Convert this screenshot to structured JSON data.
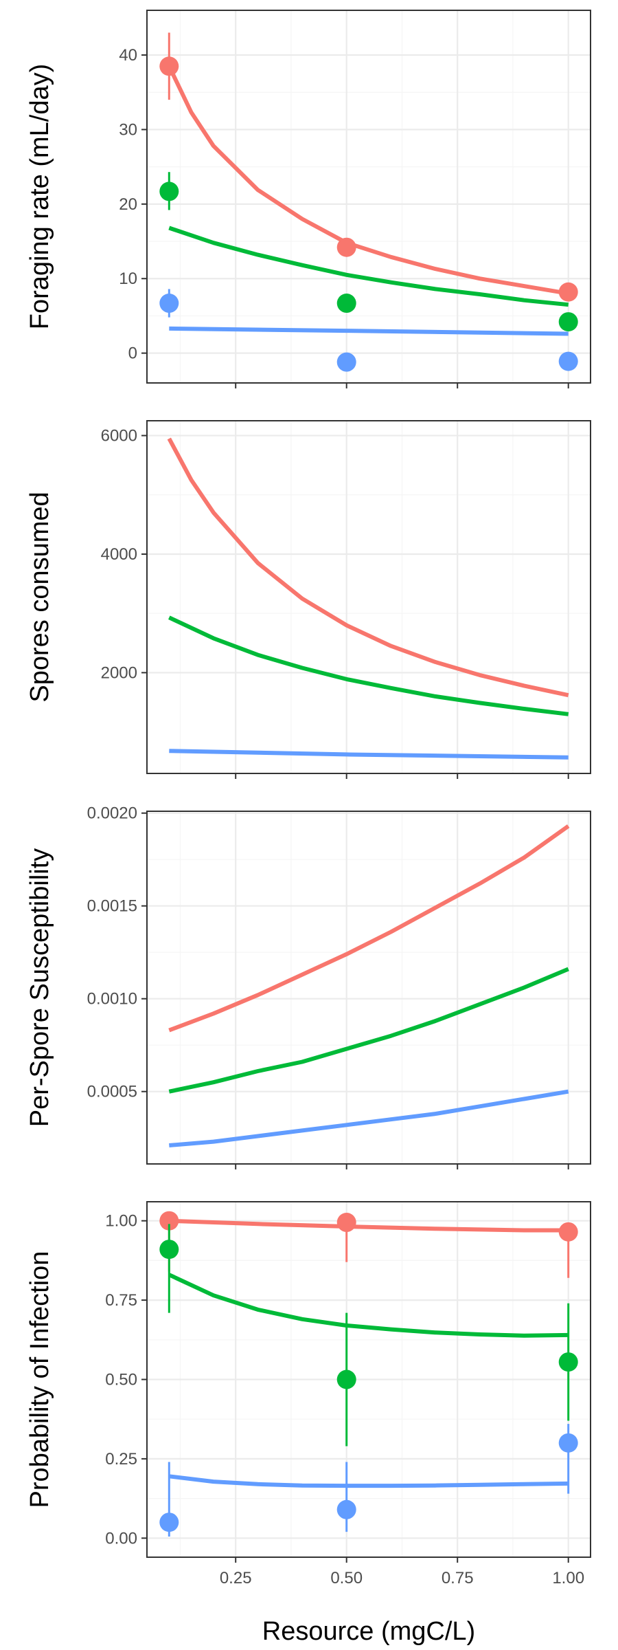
{
  "figure": {
    "xlabel": "Resource (mgC/L)",
    "x_tick_labels": [
      "0.25",
      "0.50",
      "0.75",
      "1.00"
    ]
  },
  "colors": {
    "series_red": "#F8766D",
    "series_green": "#00BA38",
    "series_blue": "#619CFF",
    "grid_major": "#EBEBEB",
    "grid_minor": "#F5F5F5",
    "panel_border": "#333333"
  },
  "chart_data": [
    {
      "type": "line",
      "title": "",
      "xlabel": "",
      "ylabel": "Foraging rate (mL/day)",
      "xlim": [
        0.05,
        1.05
      ],
      "ylim": [
        -4,
        46
      ],
      "yticks": [
        0,
        10,
        20,
        30,
        40
      ],
      "ytick_labels": [
        "0",
        "10",
        "20",
        "30",
        "40"
      ],
      "grid": true,
      "series": [
        {
          "color": "#F8766D",
          "line": [
            [
              0.1,
              38.5
            ],
            [
              0.15,
              32.3
            ],
            [
              0.2,
              27.8
            ],
            [
              0.3,
              21.9
            ],
            [
              0.4,
              18.0
            ],
            [
              0.5,
              14.8
            ],
            [
              0.6,
              12.9
            ],
            [
              0.7,
              11.3
            ],
            [
              0.8,
              10.0
            ],
            [
              0.9,
              9.0
            ],
            [
              1.0,
              8.0
            ]
          ],
          "points": [
            {
              "x": 0.1,
              "y": 38.5,
              "lo": 34.0,
              "hi": 43.0
            },
            {
              "x": 0.5,
              "y": 14.2,
              "lo": 13.4,
              "hi": 15.0
            },
            {
              "x": 1.0,
              "y": 8.2,
              "lo": 7.5,
              "hi": 9.0
            }
          ]
        },
        {
          "color": "#00BA38",
          "line": [
            [
              0.1,
              16.8
            ],
            [
              0.2,
              14.8
            ],
            [
              0.3,
              13.2
            ],
            [
              0.4,
              11.8
            ],
            [
              0.5,
              10.5
            ],
            [
              0.6,
              9.5
            ],
            [
              0.7,
              8.6
            ],
            [
              0.8,
              7.9
            ],
            [
              0.9,
              7.1
            ],
            [
              1.0,
              6.5
            ]
          ],
          "points": [
            {
              "x": 0.1,
              "y": 21.7,
              "lo": 19.2,
              "hi": 24.3
            },
            {
              "x": 0.5,
              "y": 6.7,
              "lo": 6.2,
              "hi": 7.2
            },
            {
              "x": 1.0,
              "y": 4.2,
              "lo": 3.7,
              "hi": 4.7
            }
          ]
        },
        {
          "color": "#619CFF",
          "line": [
            [
              0.1,
              3.3
            ],
            [
              0.5,
              3.0
            ],
            [
              1.0,
              2.6
            ]
          ],
          "points": [
            {
              "x": 0.1,
              "y": 6.7,
              "lo": 4.8,
              "hi": 8.6
            },
            {
              "x": 0.5,
              "y": -1.2,
              "lo": -1.7,
              "hi": -0.7
            },
            {
              "x": 1.0,
              "y": -1.1,
              "lo": -1.6,
              "hi": -0.6
            }
          ]
        }
      ]
    },
    {
      "type": "line",
      "title": "",
      "xlabel": "",
      "ylabel": "Spores consumed",
      "xlim": [
        0.05,
        1.05
      ],
      "ylim": [
        300,
        6250
      ],
      "yticks": [
        2000,
        4000,
        6000
      ],
      "ytick_labels": [
        "2000",
        "4000",
        "6000"
      ],
      "grid": true,
      "series": [
        {
          "color": "#F8766D",
          "line": [
            [
              0.1,
              5950
            ],
            [
              0.15,
              5250
            ],
            [
              0.2,
              4700
            ],
            [
              0.3,
              3850
            ],
            [
              0.4,
              3250
            ],
            [
              0.5,
              2800
            ],
            [
              0.6,
              2450
            ],
            [
              0.7,
              2180
            ],
            [
              0.8,
              1960
            ],
            [
              0.9,
              1780
            ],
            [
              1.0,
              1620
            ]
          ],
          "points": []
        },
        {
          "color": "#00BA38",
          "line": [
            [
              0.1,
              2930
            ],
            [
              0.2,
              2580
            ],
            [
              0.3,
              2300
            ],
            [
              0.4,
              2080
            ],
            [
              0.5,
              1890
            ],
            [
              0.6,
              1740
            ],
            [
              0.7,
              1600
            ],
            [
              0.8,
              1490
            ],
            [
              0.9,
              1390
            ],
            [
              1.0,
              1300
            ]
          ],
          "points": []
        },
        {
          "color": "#619CFF",
          "line": [
            [
              0.1,
              680
            ],
            [
              0.5,
              620
            ],
            [
              1.0,
              570
            ]
          ],
          "points": []
        }
      ]
    },
    {
      "type": "line",
      "title": "",
      "xlabel": "",
      "ylabel": "Per-Spore Susceptibility",
      "xlim": [
        0.05,
        1.05
      ],
      "ylim": [
        0.00011,
        0.00201
      ],
      "yticks": [
        0.0005,
        0.001,
        0.0015,
        0.002
      ],
      "ytick_labels": [
        "0.0005",
        "0.0010",
        "0.0015",
        "0.0020"
      ],
      "grid": true,
      "series": [
        {
          "color": "#F8766D",
          "line": [
            [
              0.1,
              0.00083
            ],
            [
              0.2,
              0.00092
            ],
            [
              0.3,
              0.00102
            ],
            [
              0.4,
              0.00113
            ],
            [
              0.5,
              0.00124
            ],
            [
              0.6,
              0.00136
            ],
            [
              0.7,
              0.00149
            ],
            [
              0.8,
              0.00162
            ],
            [
              0.9,
              0.00176
            ],
            [
              1.0,
              0.00193
            ]
          ],
          "points": []
        },
        {
          "color": "#00BA38",
          "line": [
            [
              0.1,
              0.0005
            ],
            [
              0.2,
              0.00055
            ],
            [
              0.3,
              0.00061
            ],
            [
              0.4,
              0.00066
            ],
            [
              0.5,
              0.00073
            ],
            [
              0.6,
              0.0008
            ],
            [
              0.7,
              0.00088
            ],
            [
              0.8,
              0.00097
            ],
            [
              0.9,
              0.00106
            ],
            [
              1.0,
              0.00116
            ]
          ],
          "points": []
        },
        {
          "color": "#619CFF",
          "line": [
            [
              0.1,
              0.00021
            ],
            [
              0.2,
              0.00023
            ],
            [
              0.3,
              0.00026
            ],
            [
              0.4,
              0.00029
            ],
            [
              0.5,
              0.00032
            ],
            [
              0.6,
              0.00035
            ],
            [
              0.7,
              0.00038
            ],
            [
              0.8,
              0.00042
            ],
            [
              0.9,
              0.00046
            ],
            [
              1.0,
              0.0005
            ]
          ],
          "points": []
        }
      ]
    },
    {
      "type": "line",
      "title": "",
      "xlabel": "Resource (mgC/L)",
      "ylabel": "Probability of Infection",
      "xlim": [
        0.05,
        1.05
      ],
      "ylim": [
        -0.06,
        1.06
      ],
      "yticks": [
        0,
        0.25,
        0.5,
        0.75,
        1
      ],
      "ytick_labels": [
        "0.00",
        "0.25",
        "0.50",
        "0.75",
        "1.00"
      ],
      "grid": true,
      "series": [
        {
          "color": "#F8766D",
          "line": [
            [
              0.1,
              1.0
            ],
            [
              0.3,
              0.99
            ],
            [
              0.5,
              0.982
            ],
            [
              0.7,
              0.975
            ],
            [
              0.9,
              0.97
            ],
            [
              1.0,
              0.97
            ]
          ],
          "points": [
            {
              "x": 0.1,
              "y": 1.0,
              "lo": 0.84,
              "hi": 1.0
            },
            {
              "x": 0.5,
              "y": 0.995,
              "lo": 0.87,
              "hi": 1.0
            },
            {
              "x": 1.0,
              "y": 0.965,
              "lo": 0.82,
              "hi": 0.99
            }
          ]
        },
        {
          "color": "#00BA38",
          "line": [
            [
              0.1,
              0.83
            ],
            [
              0.2,
              0.765
            ],
            [
              0.3,
              0.72
            ],
            [
              0.4,
              0.69
            ],
            [
              0.5,
              0.67
            ],
            [
              0.6,
              0.658
            ],
            [
              0.7,
              0.648
            ],
            [
              0.8,
              0.642
            ],
            [
              0.9,
              0.638
            ],
            [
              1.0,
              0.64
            ]
          ],
          "points": [
            {
              "x": 0.1,
              "y": 0.91,
              "lo": 0.71,
              "hi": 0.99
            },
            {
              "x": 0.5,
              "y": 0.5,
              "lo": 0.29,
              "hi": 0.71
            },
            {
              "x": 1.0,
              "y": 0.555,
              "lo": 0.37,
              "hi": 0.74
            }
          ]
        },
        {
          "color": "#619CFF",
          "line": [
            [
              0.1,
              0.195
            ],
            [
              0.2,
              0.178
            ],
            [
              0.3,
              0.17
            ],
            [
              0.4,
              0.166
            ],
            [
              0.5,
              0.165
            ],
            [
              0.6,
              0.165
            ],
            [
              0.7,
              0.166
            ],
            [
              0.8,
              0.168
            ],
            [
              0.9,
              0.17
            ],
            [
              1.0,
              0.172
            ]
          ],
          "points": [
            {
              "x": 0.1,
              "y": 0.05,
              "lo": 0.005,
              "hi": 0.24
            },
            {
              "x": 0.5,
              "y": 0.09,
              "lo": 0.02,
              "hi": 0.24
            },
            {
              "x": 1.0,
              "y": 0.3,
              "lo": 0.14,
              "hi": 0.36
            }
          ]
        }
      ]
    }
  ]
}
